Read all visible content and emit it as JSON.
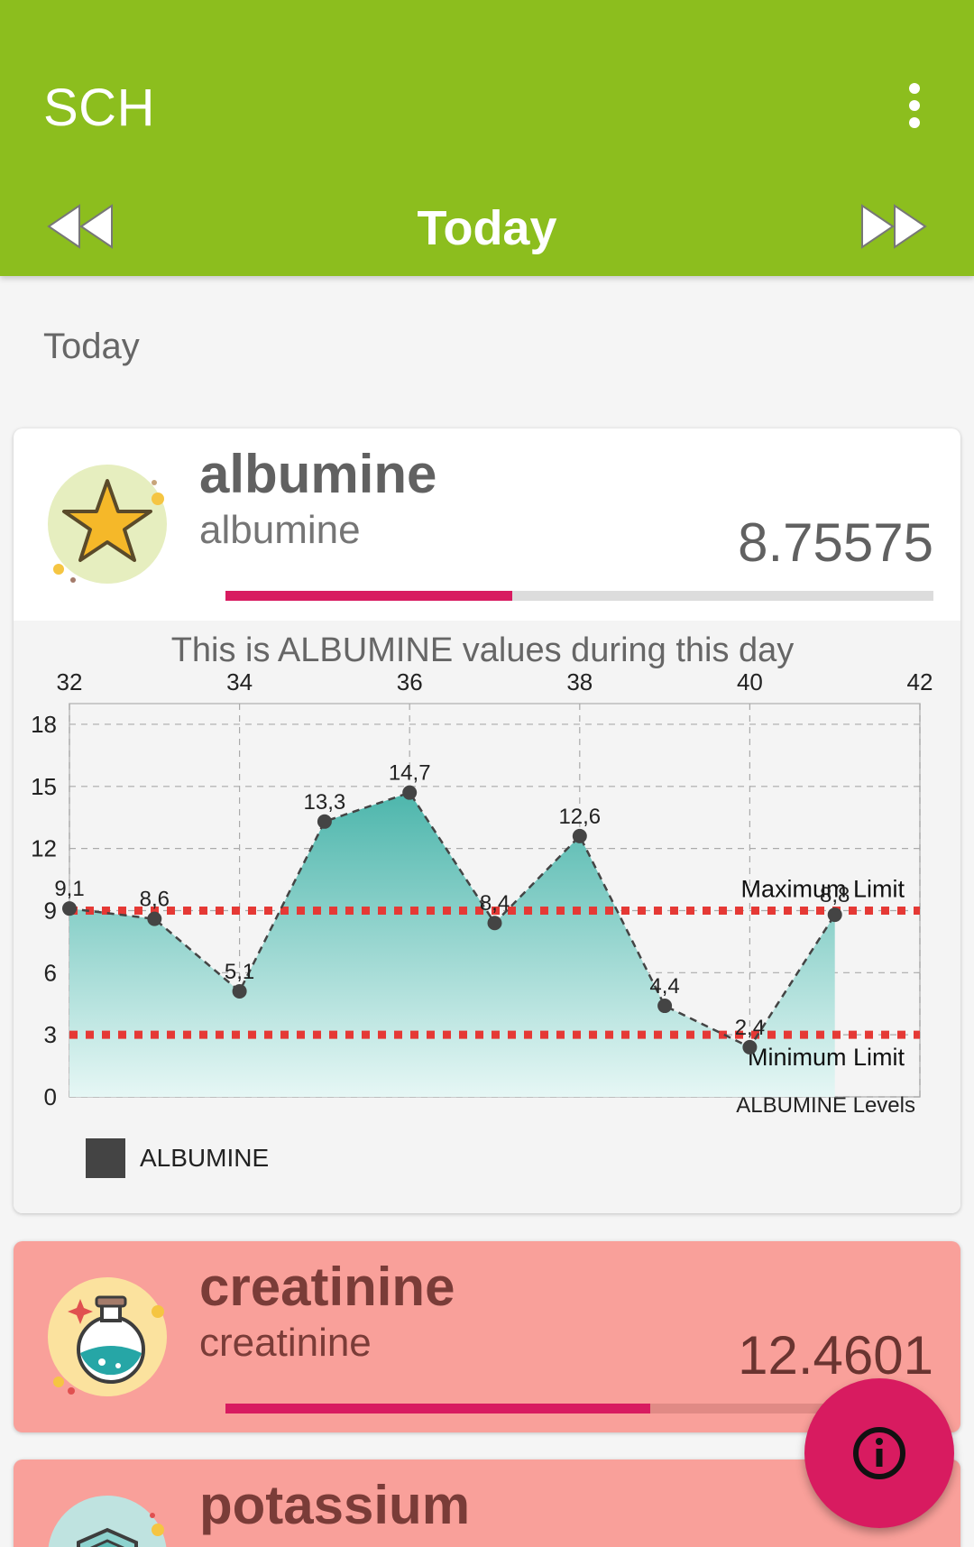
{
  "app": {
    "title": "SCH"
  },
  "nav": {
    "title": "Today"
  },
  "section": {
    "label": "Today"
  },
  "cards": [
    {
      "name": "albumine",
      "subtitle": "albumine",
      "value": "8.75575",
      "progress": 0.405
    },
    {
      "name": "creatinine",
      "subtitle": "creatinine",
      "value": "12.4601",
      "progress": 0.6
    },
    {
      "name": "potassium"
    }
  ],
  "colors": {
    "appbar": "#8cbe1e",
    "accent": "#d81b60",
    "alert_card": "#f9a09a",
    "series": "#4db6ac",
    "limit": "#e53935"
  },
  "chart_data": {
    "type": "area",
    "title": "This is ALBUMINE values during this day",
    "description": "ALBUMINE Levels",
    "xlim": [
      32,
      42
    ],
    "ylim": [
      0,
      19
    ],
    "x_ticks": [
      "32",
      "34",
      "36",
      "38",
      "40",
      "42"
    ],
    "y_ticks": [
      "0",
      "3",
      "6",
      "9",
      "12",
      "15",
      "18"
    ],
    "series": [
      {
        "name": "ALBUMINE",
        "x": [
          32,
          33,
          34,
          35,
          36,
          37,
          38,
          39,
          40,
          41
        ],
        "values": [
          9.1,
          8.6,
          5.1,
          13.3,
          14.7,
          8.4,
          12.6,
          4.4,
          2.4,
          8.8
        ],
        "labels": [
          "9,1",
          "8,6",
          "5,1",
          "13,3",
          "14,7",
          "8,4",
          "12,6",
          "4,4",
          "2,4",
          "8,8"
        ]
      }
    ],
    "limit_lines": [
      {
        "label": "Maximum Limit",
        "value": 9
      },
      {
        "label": "Minimum Limit",
        "value": 3
      }
    ],
    "legend": {
      "label": "ALBUMINE",
      "position": "bottom-left"
    },
    "grid": true
  }
}
